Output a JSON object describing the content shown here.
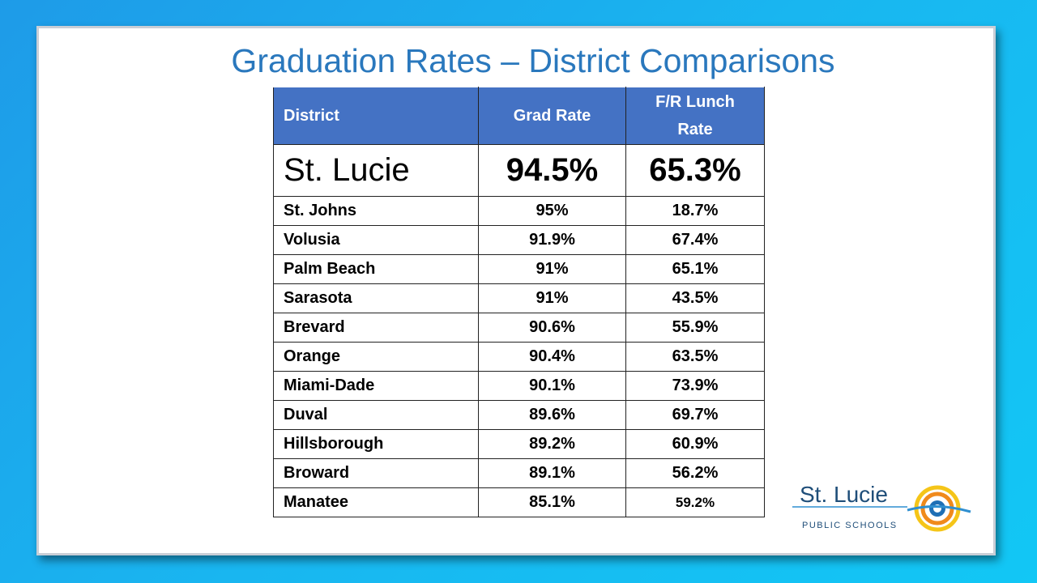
{
  "title": "Graduation Rates – District Comparisons",
  "table": {
    "header": [
      "District",
      "Grad  Rate",
      "F/R Lunch Rate"
    ],
    "highlight": [
      "St. Lucie",
      "94.5%",
      "65.3%"
    ],
    "rows": [
      [
        "St. Johns",
        "95%",
        "18.7%"
      ],
      [
        "Volusia",
        "91.9%",
        "67.4%"
      ],
      [
        "Palm Beach",
        "91%",
        "65.1%"
      ],
      [
        "Sarasota",
        "91%",
        "43.5%"
      ],
      [
        "Brevard",
        "90.6%",
        "55.9%"
      ],
      [
        "Orange",
        "90.4%",
        "63.5%"
      ],
      [
        "Miami-Dade",
        "90.1%",
        "73.9%"
      ],
      [
        "Duval",
        "89.6%",
        "69.7%"
      ],
      [
        "Hillsborough",
        "89.2%",
        "60.9%"
      ],
      [
        "Broward",
        "89.1%",
        "56.2%"
      ],
      [
        "Manatee",
        "85.1%",
        "59.2%"
      ]
    ]
  },
  "logo": {
    "name": "St. Lucie",
    "subtitle": "PUBLIC SCHOOLS"
  }
}
